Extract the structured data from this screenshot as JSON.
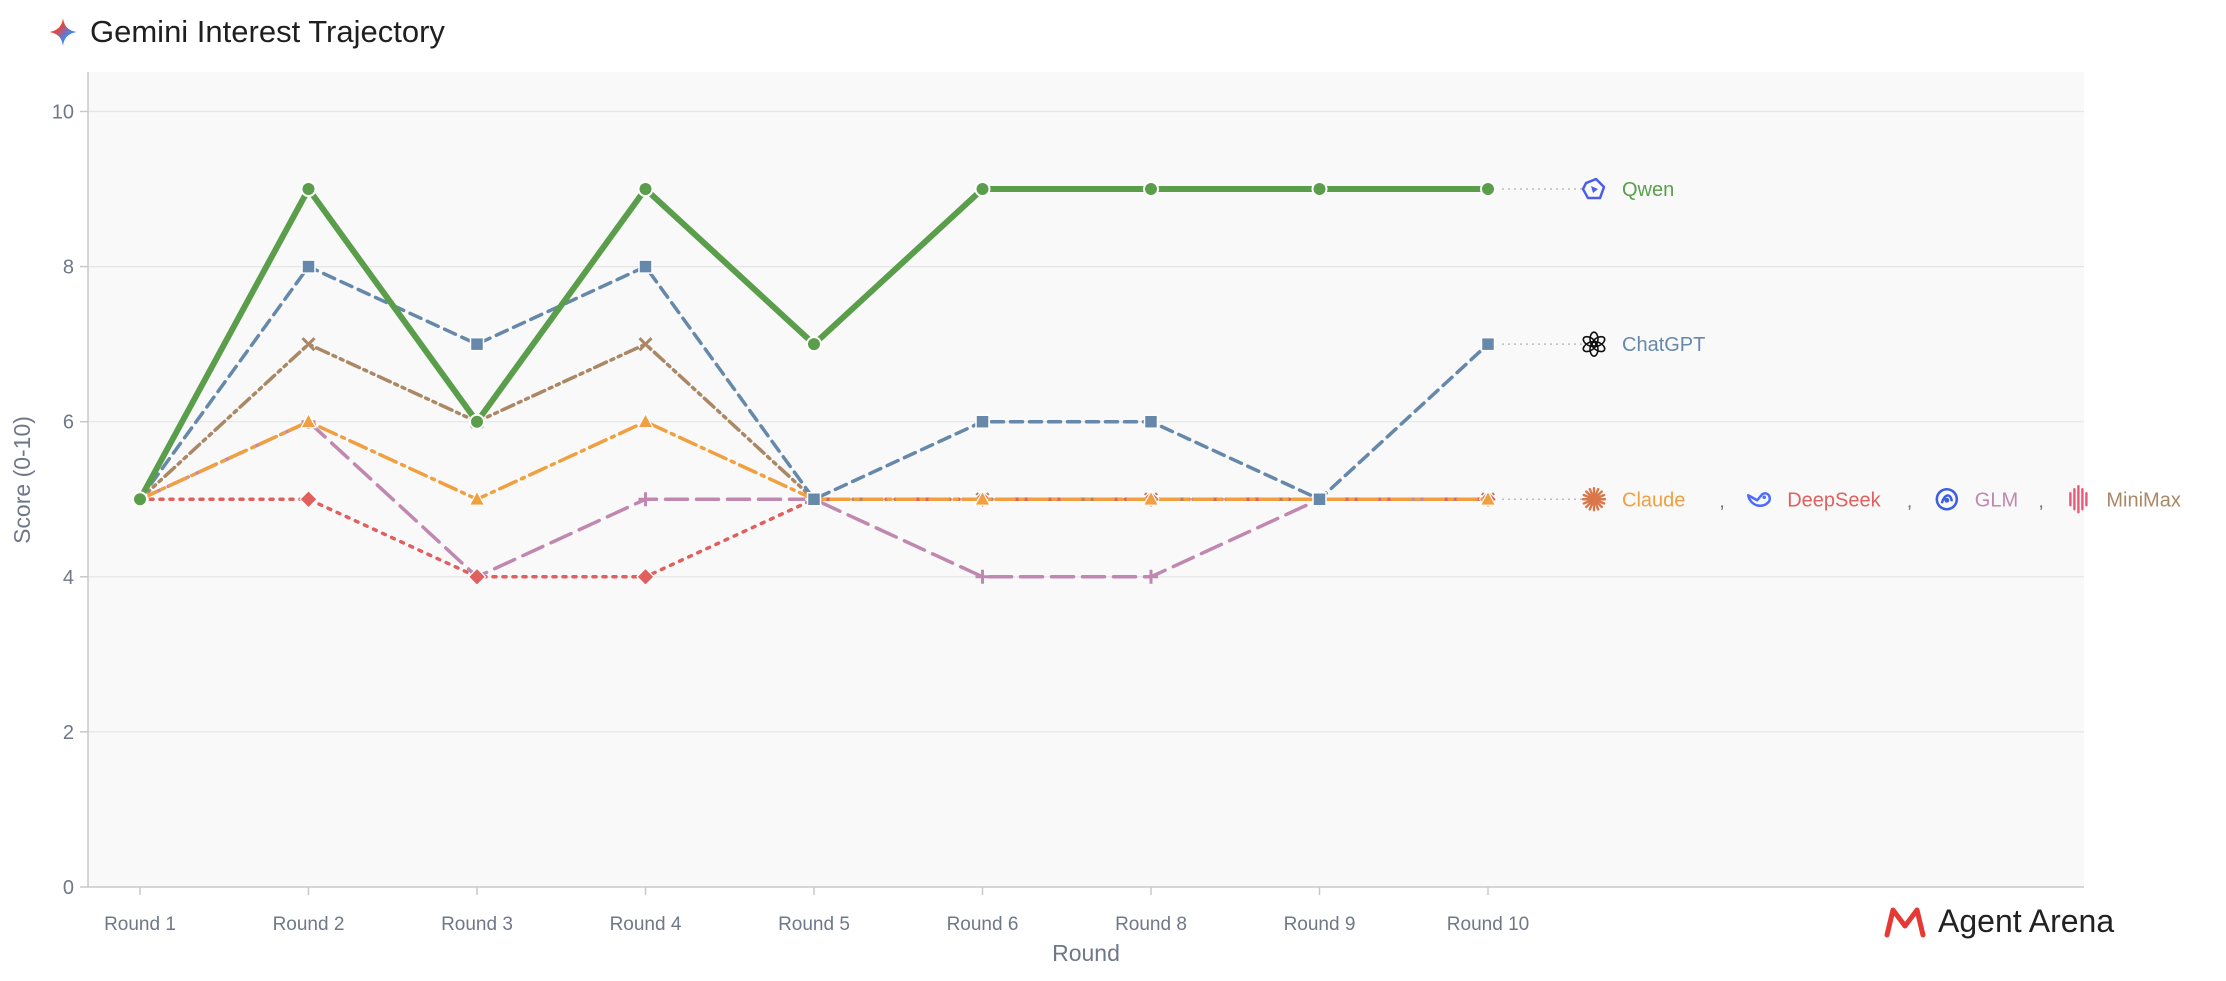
{
  "header": {
    "title": "Gemini Interest Trajectory",
    "icon": "gemini-spark-icon"
  },
  "brand": {
    "name": "Agent Arena",
    "icon": "agent-arena-logo-icon",
    "color": "#e53935"
  },
  "chart_data": {
    "type": "line",
    "title": "Gemini Interest Trajectory",
    "xlabel": "Round",
    "ylabel": "Score (0-10)",
    "ylim": [
      0,
      10.5
    ],
    "yticks": [
      0,
      2,
      4,
      6,
      8,
      10
    ],
    "categories": [
      "Round 1",
      "Round 2",
      "Round 3",
      "Round 4",
      "Round 5",
      "Round 6",
      "Round 8",
      "Round 9",
      "Round 10"
    ],
    "grid": true,
    "series": [
      {
        "name": "Qwen",
        "values": [
          5,
          9,
          6,
          9,
          7,
          9,
          9,
          9,
          9
        ],
        "color": "#5a9e4b",
        "dash": "solid",
        "marker": "circle",
        "icon": "qwen-icon"
      },
      {
        "name": "ChatGPT",
        "values": [
          5,
          8,
          7,
          8,
          5,
          6,
          6,
          5,
          7
        ],
        "color": "#6688aa",
        "dash": "dashed",
        "marker": "square",
        "icon": "chatgpt-icon"
      },
      {
        "name": "Claude",
        "values": [
          5,
          6,
          5,
          6,
          5,
          5,
          5,
          5,
          5
        ],
        "color": "#f0a040",
        "dash": "dashdot",
        "marker": "triangle",
        "icon": "claude-icon"
      },
      {
        "name": "DeepSeek",
        "values": [
          5,
          5,
          4,
          4,
          5,
          5,
          5,
          5,
          5
        ],
        "color": "#e06060",
        "dash": "dotted",
        "marker": "diamond",
        "icon": "deepseek-icon"
      },
      {
        "name": "GLM",
        "values": [
          5,
          6,
          4,
          5,
          5,
          4,
          4,
          5,
          5
        ],
        "color": "#c088b0",
        "dash": "longdash",
        "marker": "plus",
        "icon": "glm-icon"
      },
      {
        "name": "MiniMax",
        "values": [
          5,
          7,
          6,
          7,
          5,
          5,
          5,
          5,
          5
        ],
        "color": "#aa8866",
        "dash": "dashdotdot",
        "marker": "x",
        "icon": "minimax-icon"
      }
    ],
    "end_labels": [
      {
        "items": [
          "Qwen"
        ],
        "value": 9
      },
      {
        "items": [
          "ChatGPT"
        ],
        "value": 7
      },
      {
        "items": [
          "Claude",
          "DeepSeek",
          "GLM",
          "MiniMax"
        ],
        "value": 5,
        "separator": ","
      }
    ]
  }
}
